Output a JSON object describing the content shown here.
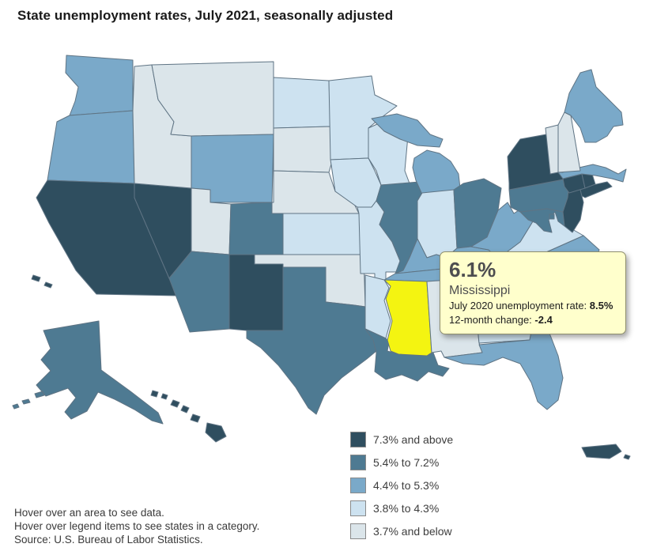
{
  "title": "State unemployment rates, July 2021, seasonally adjusted",
  "tooltip": {
    "rate": "6.1%",
    "state": "Mississippi",
    "prev_label": "July 2020 unemployment rate: ",
    "prev_value": "8.5%",
    "change_label": "12-month change: ",
    "change_value": "-2.4"
  },
  "legend": {
    "items": [
      {
        "label": "7.3% and above",
        "color": "#2f4e5f"
      },
      {
        "label": "5.4% to 7.2%",
        "color": "#4e7a92"
      },
      {
        "label": "4.4% to 5.3%",
        "color": "#7aa9c9"
      },
      {
        "label": "3.8% to 4.3%",
        "color": "#cde2f0"
      },
      {
        "label": "3.7% and below",
        "color": "#dbe5ea"
      }
    ]
  },
  "notes": [
    "Hover over an area to see data.",
    "Hover over legend items to see states in a category.",
    "Source: U.S. Bureau of Labor Statistics."
  ],
  "map": {
    "border_color": "#5f7484",
    "highlight_color": "#f4f411",
    "highlighted_state": "MS",
    "states": [
      {
        "abbr": "WA",
        "name": "Washington",
        "category": "4.4% to 5.3%"
      },
      {
        "abbr": "OR",
        "name": "Oregon",
        "category": "4.4% to 5.3%"
      },
      {
        "abbr": "CA",
        "name": "California",
        "category": "7.3% and above"
      },
      {
        "abbr": "NV",
        "name": "Nevada",
        "category": "7.3% and above"
      },
      {
        "abbr": "ID",
        "name": "Idaho",
        "category": "3.7% and below"
      },
      {
        "abbr": "MT",
        "name": "Montana",
        "category": "3.7% and below"
      },
      {
        "abbr": "WY",
        "name": "Wyoming",
        "category": "4.4% to 5.3%"
      },
      {
        "abbr": "UT",
        "name": "Utah",
        "category": "3.7% and below"
      },
      {
        "abbr": "CO",
        "name": "Colorado",
        "category": "5.4% to 7.2%"
      },
      {
        "abbr": "AZ",
        "name": "Arizona",
        "category": "5.4% to 7.2%"
      },
      {
        "abbr": "NM",
        "name": "New Mexico",
        "category": "7.3% and above"
      },
      {
        "abbr": "ND",
        "name": "North Dakota",
        "category": "3.8% to 4.3%"
      },
      {
        "abbr": "SD",
        "name": "South Dakota",
        "category": "3.7% and below"
      },
      {
        "abbr": "NE",
        "name": "Nebraska",
        "category": "3.7% and below"
      },
      {
        "abbr": "KS",
        "name": "Kansas",
        "category": "3.8% to 4.3%"
      },
      {
        "abbr": "OK",
        "name": "Oklahoma",
        "category": "3.7% and below"
      },
      {
        "abbr": "TX",
        "name": "Texas",
        "category": "5.4% to 7.2%"
      },
      {
        "abbr": "MN",
        "name": "Minnesota",
        "category": "3.8% to 4.3%"
      },
      {
        "abbr": "IA",
        "name": "Iowa",
        "category": "3.8% to 4.3%"
      },
      {
        "abbr": "MO",
        "name": "Missouri",
        "category": "3.8% to 4.3%"
      },
      {
        "abbr": "AR",
        "name": "Arkansas",
        "category": "3.8% to 4.3%"
      },
      {
        "abbr": "LA",
        "name": "Louisiana",
        "category": "5.4% to 7.2%"
      },
      {
        "abbr": "WI",
        "name": "Wisconsin",
        "category": "3.8% to 4.3%"
      },
      {
        "abbr": "IL",
        "name": "Illinois",
        "category": "5.4% to 7.2%"
      },
      {
        "abbr": "MI",
        "name": "Michigan",
        "category": "4.4% to 5.3%"
      },
      {
        "abbr": "IN",
        "name": "Indiana",
        "category": "3.8% to 4.3%"
      },
      {
        "abbr": "OH",
        "name": "Ohio",
        "category": "5.4% to 7.2%"
      },
      {
        "abbr": "KY",
        "name": "Kentucky",
        "category": "4.4% to 5.3%"
      },
      {
        "abbr": "TN",
        "name": "Tennessee",
        "category": "4.4% to 5.3%"
      },
      {
        "abbr": "MS",
        "name": "Mississippi",
        "category": "5.4% to 7.2%"
      },
      {
        "abbr": "AL",
        "name": "Alabama",
        "category": "3.7% and below"
      },
      {
        "abbr": "GA",
        "name": "Georgia",
        "category": "3.8% to 4.3%"
      },
      {
        "abbr": "FL",
        "name": "Florida",
        "category": "4.4% to 5.3%"
      },
      {
        "abbr": "SC",
        "name": "South Carolina",
        "category": "3.8% to 4.3%"
      },
      {
        "abbr": "NC",
        "name": "North Carolina",
        "category": "4.4% to 5.3%"
      },
      {
        "abbr": "VA",
        "name": "Virginia",
        "category": "3.8% to 4.3%"
      },
      {
        "abbr": "WV",
        "name": "West Virginia",
        "category": "4.4% to 5.3%"
      },
      {
        "abbr": "MD",
        "name": "Maryland",
        "category": "5.4% to 7.2%"
      },
      {
        "abbr": "DE",
        "name": "Delaware",
        "category": "5.4% to 7.2%"
      },
      {
        "abbr": "DC",
        "name": "District of Columbia",
        "category": "5.4% to 7.2%"
      },
      {
        "abbr": "PA",
        "name": "Pennsylvania",
        "category": "5.4% to 7.2%"
      },
      {
        "abbr": "NY",
        "name": "New York",
        "category": "7.3% and above"
      },
      {
        "abbr": "NJ",
        "name": "New Jersey",
        "category": "7.3% and above"
      },
      {
        "abbr": "CT",
        "name": "Connecticut",
        "category": "7.3% and above"
      },
      {
        "abbr": "RI",
        "name": "Rhode Island",
        "category": "7.3% and above"
      },
      {
        "abbr": "MA",
        "name": "Massachusetts",
        "category": "4.4% to 5.3%"
      },
      {
        "abbr": "VT",
        "name": "Vermont",
        "category": "3.7% and below"
      },
      {
        "abbr": "NH",
        "name": "New Hampshire",
        "category": "3.7% and below"
      },
      {
        "abbr": "ME",
        "name": "Maine",
        "category": "4.4% to 5.3%"
      },
      {
        "abbr": "AK",
        "name": "Alaska",
        "category": "5.4% to 7.2%"
      },
      {
        "abbr": "HI",
        "name": "Hawaii",
        "category": "7.3% and above"
      },
      {
        "abbr": "PR",
        "name": "Puerto Rico",
        "category": "7.3% and above"
      }
    ]
  },
  "chart_data": {
    "type": "heatmap",
    "subtype": "choropleth-us-states",
    "title": "State unemployment rates, July 2021, seasonally adjusted",
    "legend_position": "bottom-right",
    "bins": [
      "7.3% and above",
      "5.4% to 7.2%",
      "4.4% to 5.3%",
      "3.8% to 4.3%",
      "3.7% and below"
    ],
    "series": [
      {
        "name": "7.3% and above",
        "states": [
          "California",
          "Nevada",
          "New Mexico",
          "New York",
          "New Jersey",
          "Connecticut",
          "Rhode Island",
          "Hawaii",
          "Puerto Rico"
        ]
      },
      {
        "name": "5.4% to 7.2%",
        "states": [
          "Alaska",
          "Arizona",
          "Colorado",
          "Texas",
          "Louisiana",
          "Mississippi",
          "Illinois",
          "Ohio",
          "Pennsylvania",
          "Maryland",
          "Delaware",
          "District of Columbia"
        ]
      },
      {
        "name": "4.4% to 5.3%",
        "states": [
          "Washington",
          "Oregon",
          "Wyoming",
          "Michigan",
          "Kentucky",
          "Tennessee",
          "West Virginia",
          "North Carolina",
          "Florida",
          "Massachusetts",
          "Maine"
        ]
      },
      {
        "name": "3.8% to 4.3%",
        "states": [
          "North Dakota",
          "Minnesota",
          "Wisconsin",
          "Iowa",
          "Missouri",
          "Kansas",
          "Arkansas",
          "Indiana",
          "Virginia",
          "South Carolina",
          "Georgia"
        ]
      },
      {
        "name": "3.7% and below",
        "states": [
          "Idaho",
          "Montana",
          "Utah",
          "South Dakota",
          "Nebraska",
          "Oklahoma",
          "Alabama",
          "Vermont",
          "New Hampshire"
        ]
      }
    ],
    "highlighted_point": {
      "state": "Mississippi",
      "rate_july_2021": "6.1%",
      "rate_july_2020": "8.5%",
      "twelve_month_change": "-2.4"
    }
  }
}
